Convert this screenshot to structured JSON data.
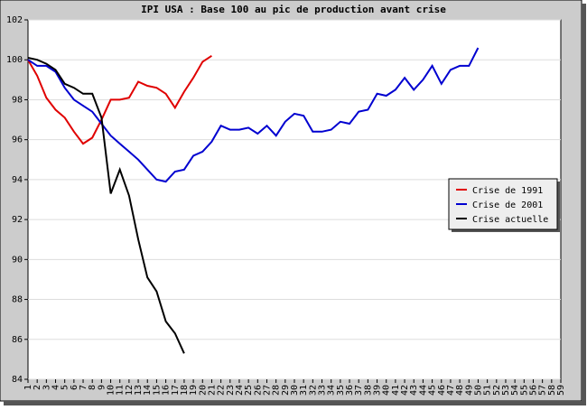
{
  "chart_data": {
    "type": "line",
    "title": "IPI USA : Base 100 au pic de production avant crise",
    "xlim": [
      1,
      59
    ],
    "xticks": [
      1,
      2,
      3,
      4,
      5,
      6,
      7,
      8,
      9,
      10,
      11,
      12,
      13,
      14,
      15,
      16,
      17,
      18,
      19,
      20,
      21,
      22,
      23,
      24,
      25,
      26,
      27,
      28,
      29,
      30,
      31,
      32,
      33,
      34,
      35,
      36,
      37,
      38,
      39,
      40,
      41,
      42,
      43,
      44,
      45,
      46,
      47,
      48,
      49,
      50,
      51,
      52,
      53,
      54,
      55,
      56,
      57,
      58,
      59
    ],
    "ylim": [
      84,
      102
    ],
    "yticks": [
      84,
      86,
      88,
      90,
      92,
      94,
      96,
      98,
      100,
      102
    ],
    "grid": true,
    "legend": "right",
    "series": [
      {
        "name": "Crise de 1991",
        "color": "#e00000",
        "x": [
          1,
          2,
          3,
          4,
          5,
          6,
          7,
          8,
          9,
          10,
          11,
          12,
          13,
          14,
          15,
          16,
          17,
          18,
          19,
          20,
          21
        ],
        "values": [
          100,
          99.2,
          98.1,
          97.5,
          97.1,
          96.4,
          95.8,
          96.1,
          97.0,
          98.0,
          98.0,
          98.1,
          98.9,
          98.7,
          98.6,
          98.3,
          97.6,
          98.4,
          99.1,
          99.9,
          100.2
        ]
      },
      {
        "name": "Crise de 2001",
        "color": "#0000d0",
        "x": [
          1,
          2,
          3,
          4,
          5,
          6,
          7,
          8,
          9,
          10,
          11,
          12,
          13,
          14,
          15,
          16,
          17,
          18,
          19,
          20,
          21,
          22,
          23,
          24,
          25,
          26,
          27,
          28,
          29,
          30,
          31,
          32,
          33,
          34,
          35,
          36,
          37,
          38,
          39,
          40,
          41,
          42,
          43,
          44,
          45,
          46,
          47,
          48,
          49,
          50
        ],
        "values": [
          100,
          99.7,
          99.7,
          99.4,
          98.6,
          98.0,
          97.7,
          97.4,
          96.8,
          96.2,
          95.8,
          95.4,
          95.0,
          94.5,
          94.0,
          93.9,
          94.4,
          94.5,
          95.2,
          95.4,
          95.9,
          96.7,
          96.5,
          96.5,
          96.6,
          96.3,
          96.7,
          96.2,
          96.9,
          97.3,
          97.2,
          96.4,
          96.4,
          96.5,
          96.9,
          96.8,
          97.4,
          97.5,
          98.3,
          98.2,
          98.5,
          99.1,
          98.5,
          99.0,
          99.7,
          98.8,
          99.5,
          99.7,
          99.7,
          100.6
        ]
      },
      {
        "name": "Crise actuelle",
        "color": "#000000",
        "x": [
          1,
          2,
          3,
          4,
          5,
          6,
          7,
          8,
          9,
          10,
          11,
          12,
          13,
          14,
          15,
          16,
          17,
          18
        ],
        "values": [
          100.1,
          100.0,
          99.8,
          99.5,
          98.8,
          98.6,
          98.3,
          98.3,
          97.1,
          93.3,
          94.5,
          93.2,
          91.0,
          89.1,
          88.4,
          86.9,
          86.3,
          85.3
        ]
      }
    ]
  }
}
